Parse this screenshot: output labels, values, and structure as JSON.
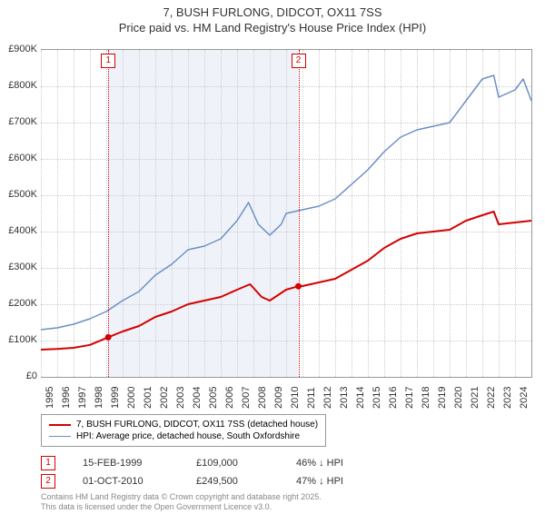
{
  "title_line1": "7, BUSH FURLONG, DIDCOT, OX11 7SS",
  "title_line2": "Price paid vs. HM Land Registry's House Price Index (HPI)",
  "chart": {
    "type": "line",
    "background_color": "#ffffff",
    "grid_color": "#cccccc",
    "axis_color": "#999999",
    "shade_color": "#e8eef7",
    "y_axis": {
      "min": 0,
      "max": 900000,
      "ticks": [
        0,
        100000,
        200000,
        300000,
        400000,
        500000,
        600000,
        700000,
        800000,
        900000
      ],
      "labels": [
        "£0",
        "£100K",
        "£200K",
        "£300K",
        "£400K",
        "£500K",
        "£600K",
        "£700K",
        "£800K",
        "£900K"
      ]
    },
    "x_axis": {
      "min": 1995,
      "max": 2025,
      "ticks": [
        1995,
        1996,
        1997,
        1998,
        1999,
        2000,
        2001,
        2002,
        2003,
        2004,
        2005,
        2006,
        2007,
        2008,
        2009,
        2010,
        2011,
        2012,
        2013,
        2014,
        2015,
        2016,
        2017,
        2018,
        2019,
        2020,
        2021,
        2022,
        2023,
        2024
      ],
      "labels": [
        "1995",
        "1996",
        "1997",
        "1998",
        "1999",
        "2000",
        "2001",
        "2002",
        "2003",
        "2004",
        "2005",
        "2006",
        "2007",
        "2008",
        "2009",
        "2010",
        "2011",
        "2012",
        "2013",
        "2014",
        "2015",
        "2016",
        "2017",
        "2018",
        "2019",
        "2020",
        "2021",
        "2022",
        "2023",
        "2024"
      ]
    },
    "shade_band": {
      "x_start": 1999.12,
      "x_end": 2010.75
    },
    "markers": [
      {
        "label": "1",
        "x": 1999.12,
        "color": "#d40000"
      },
      {
        "label": "2",
        "x": 2010.75,
        "color": "#d40000"
      }
    ],
    "series": [
      {
        "name": "price_paid",
        "color": "#d40000",
        "width": 2,
        "points": [
          [
            1995,
            75000
          ],
          [
            1996,
            77000
          ],
          [
            1997,
            80000
          ],
          [
            1998,
            88000
          ],
          [
            1999.12,
            109000
          ],
          [
            2000,
            125000
          ],
          [
            2001,
            140000
          ],
          [
            2002,
            165000
          ],
          [
            2003,
            180000
          ],
          [
            2004,
            200000
          ],
          [
            2005,
            210000
          ],
          [
            2006,
            220000
          ],
          [
            2007,
            240000
          ],
          [
            2007.8,
            255000
          ],
          [
            2008.5,
            220000
          ],
          [
            2009,
            210000
          ],
          [
            2009.5,
            225000
          ],
          [
            2010,
            240000
          ],
          [
            2010.75,
            249500
          ],
          [
            2011,
            250000
          ],
          [
            2012,
            260000
          ],
          [
            2013,
            270000
          ],
          [
            2014,
            295000
          ],
          [
            2015,
            320000
          ],
          [
            2016,
            355000
          ],
          [
            2017,
            380000
          ],
          [
            2018,
            395000
          ],
          [
            2019,
            400000
          ],
          [
            2020,
            405000
          ],
          [
            2021,
            430000
          ],
          [
            2022,
            445000
          ],
          [
            2022.7,
            455000
          ],
          [
            2023,
            420000
          ],
          [
            2024,
            425000
          ],
          [
            2025,
            430000
          ]
        ],
        "sale_points": [
          {
            "x": 1999.12,
            "y": 109000
          },
          {
            "x": 2010.75,
            "y": 249500
          }
        ]
      },
      {
        "name": "hpi",
        "color": "#6a8fc5",
        "width": 1.5,
        "points": [
          [
            1995,
            130000
          ],
          [
            1996,
            135000
          ],
          [
            1997,
            145000
          ],
          [
            1998,
            160000
          ],
          [
            1999,
            180000
          ],
          [
            2000,
            210000
          ],
          [
            2001,
            235000
          ],
          [
            2002,
            280000
          ],
          [
            2003,
            310000
          ],
          [
            2004,
            350000
          ],
          [
            2005,
            360000
          ],
          [
            2006,
            380000
          ],
          [
            2007,
            430000
          ],
          [
            2007.7,
            480000
          ],
          [
            2008.3,
            420000
          ],
          [
            2009,
            390000
          ],
          [
            2009.7,
            420000
          ],
          [
            2010,
            450000
          ],
          [
            2011,
            460000
          ],
          [
            2012,
            470000
          ],
          [
            2013,
            490000
          ],
          [
            2014,
            530000
          ],
          [
            2015,
            570000
          ],
          [
            2016,
            620000
          ],
          [
            2017,
            660000
          ],
          [
            2018,
            680000
          ],
          [
            2019,
            690000
          ],
          [
            2020,
            700000
          ],
          [
            2021,
            760000
          ],
          [
            2022,
            820000
          ],
          [
            2022.7,
            830000
          ],
          [
            2023,
            770000
          ],
          [
            2024,
            790000
          ],
          [
            2024.5,
            820000
          ],
          [
            2025,
            760000
          ]
        ]
      }
    ]
  },
  "legend": {
    "items": [
      {
        "label": "7, BUSH FURLONG, DIDCOT, OX11 7SS (detached house)",
        "color": "#d40000",
        "width": 2
      },
      {
        "label": "HPI: Average price, detached house, South Oxfordshire",
        "color": "#6a8fc5",
        "width": 1.5
      }
    ]
  },
  "sales": [
    {
      "marker": "1",
      "marker_color": "#d40000",
      "date": "15-FEB-1999",
      "price": "£109,000",
      "diff": "46% ↓ HPI"
    },
    {
      "marker": "2",
      "marker_color": "#d40000",
      "date": "01-OCT-2010",
      "price": "£249,500",
      "diff": "47% ↓ HPI"
    }
  ],
  "footnote_line1": "Contains HM Land Registry data © Crown copyright and database right 2025.",
  "footnote_line2": "This data is licensed under the Open Government Licence v3.0."
}
